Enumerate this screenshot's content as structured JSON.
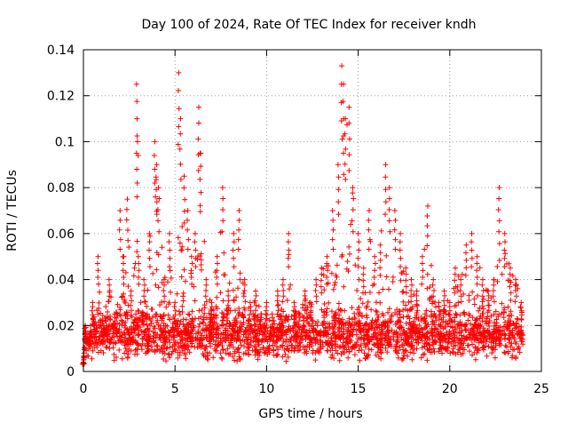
{
  "chart_data": {
    "type": "scatter",
    "title": "Day 100 of 2024, Rate Of TEC Index for receiver kndh",
    "xlabel": "GPS time / hours",
    "ylabel": "ROTI / TECUs",
    "xlim": [
      0,
      25
    ],
    "ylim": [
      0,
      0.14
    ],
    "x_ticks": [
      0,
      5,
      10,
      15,
      20,
      25
    ],
    "x_tick_labels": [
      "0",
      "5",
      "10",
      "15",
      "20",
      "25"
    ],
    "y_ticks": [
      0,
      0.02,
      0.04,
      0.06,
      0.08,
      0.1,
      0.12,
      0.14
    ],
    "y_tick_labels": [
      "0",
      "0.02",
      "0.04",
      "0.06",
      "0.08",
      "0.1",
      "0.12",
      "0.14"
    ],
    "grid": true,
    "marker": "+",
    "marker_color": "#ff0000",
    "x_data_range_hours": [
      0,
      24
    ],
    "series": [
      {
        "name": "ROTI",
        "color": "#ff0000",
        "x": [
          0.0,
          0.1,
          0.3,
          0.5,
          0.7,
          0.8,
          1.1,
          1.4,
          1.7,
          2.0,
          2.2,
          2.4,
          2.6,
          2.9,
          2.95,
          3.0,
          3.3,
          3.6,
          3.9,
          4.0,
          4.1,
          4.4,
          4.7,
          5.0,
          5.2,
          5.3,
          5.5,
          5.7,
          5.9,
          6.1,
          6.3,
          6.4,
          6.7,
          7.0,
          7.3,
          7.6,
          7.9,
          8.2,
          8.5,
          8.8,
          9.1,
          9.4,
          9.7,
          10.0,
          10.3,
          10.6,
          10.9,
          11.2,
          11.5,
          11.8,
          12.1,
          12.4,
          12.7,
          13.0,
          13.3,
          13.6,
          13.9,
          14.1,
          14.2,
          14.3,
          14.5,
          14.7,
          15.0,
          15.3,
          15.6,
          15.9,
          16.2,
          16.5,
          16.7,
          17.0,
          17.3,
          17.6,
          17.9,
          18.2,
          18.5,
          18.8,
          19.1,
          19.4,
          19.7,
          20.0,
          20.3,
          20.6,
          20.9,
          21.2,
          21.5,
          21.8,
          22.1,
          22.4,
          22.7,
          23.0,
          23.3,
          23.6,
          23.9
        ],
        "y": [
          0.004,
          0.02,
          0.015,
          0.03,
          0.02,
          0.05,
          0.02,
          0.04,
          0.025,
          0.07,
          0.05,
          0.075,
          0.035,
          0.125,
          0.1,
          0.05,
          0.04,
          0.06,
          0.1,
          0.09,
          0.08,
          0.04,
          0.06,
          0.03,
          0.13,
          0.11,
          0.085,
          0.07,
          0.05,
          0.06,
          0.115,
          0.095,
          0.04,
          0.03,
          0.05,
          0.08,
          0.035,
          0.06,
          0.07,
          0.04,
          0.03,
          0.035,
          0.025,
          0.03,
          0.025,
          0.035,
          0.04,
          0.06,
          0.03,
          0.025,
          0.035,
          0.03,
          0.04,
          0.045,
          0.05,
          0.07,
          0.09,
          0.133,
          0.125,
          0.11,
          0.115,
          0.08,
          0.06,
          0.045,
          0.07,
          0.05,
          0.055,
          0.09,
          0.08,
          0.07,
          0.06,
          0.045,
          0.04,
          0.035,
          0.05,
          0.072,
          0.04,
          0.03,
          0.035,
          0.03,
          0.045,
          0.04,
          0.055,
          0.06,
          0.05,
          0.04,
          0.035,
          0.04,
          0.08,
          0.06,
          0.045,
          0.04,
          0.03
        ]
      }
    ]
  }
}
